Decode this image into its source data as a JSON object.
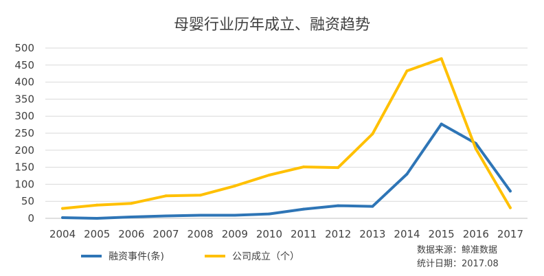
{
  "chart_data": {
    "type": "line",
    "title": "母婴行业历年成立、融资趋势",
    "xlabel": "",
    "ylabel": "",
    "categories": [
      "2004",
      "2005",
      "2006",
      "2007",
      "2008",
      "2009",
      "2010",
      "2011",
      "2012",
      "2013",
      "2014",
      "2015",
      "2016",
      "2017"
    ],
    "ylim": [
      0,
      500
    ],
    "yticks": [
      0,
      50,
      100,
      150,
      200,
      250,
      300,
      350,
      400,
      450,
      500
    ],
    "grid": true,
    "legend_position": "bottom-left",
    "series": [
      {
        "name": "融资事件(条)",
        "color": "#2E75B6",
        "values": [
          2,
          0,
          4,
          7,
          9,
          9,
          13,
          27,
          37,
          35,
          130,
          277,
          220,
          80
        ]
      },
      {
        "name": "公司成立（个）",
        "color": "#FFC000",
        "values": [
          29,
          39,
          44,
          66,
          68,
          95,
          127,
          151,
          149,
          248,
          433,
          469,
          204,
          31
        ]
      }
    ]
  },
  "source_note": {
    "line1": "数据来源：鲸准数据",
    "line2": "统计日期：2017.08"
  }
}
